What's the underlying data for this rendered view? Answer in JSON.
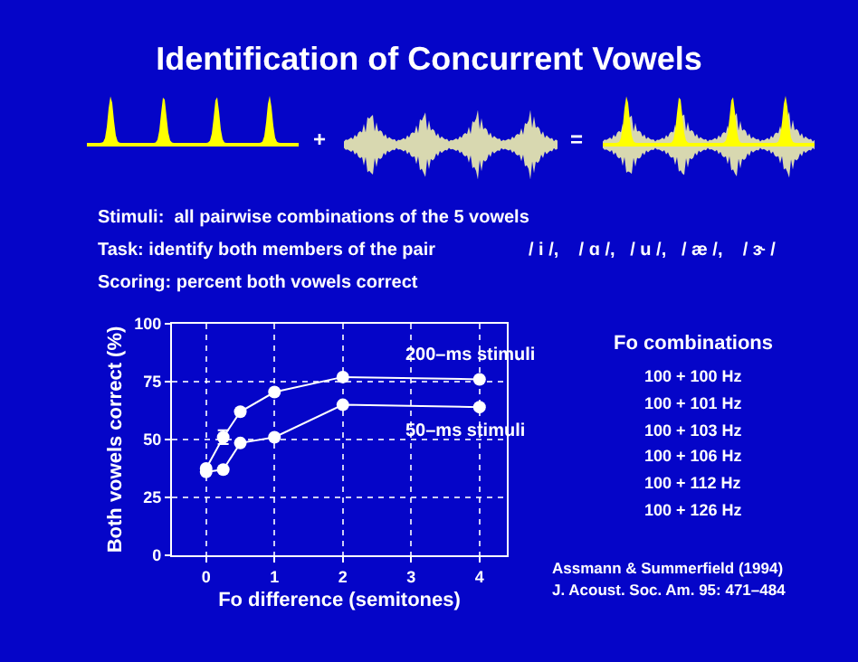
{
  "chart_data": {
    "type": "line",
    "title": "Identification of Concurrent Vowels",
    "xlabel": "Fo difference (semitones)",
    "ylabel": "Both vowels correct (%)",
    "series": [
      {
        "name": "200–ms stimuli",
        "color": "#ffffff",
        "x": [
          0,
          0.25,
          0.5,
          1,
          2,
          4
        ],
        "values": [
          37.5,
          51,
          62,
          70.5,
          77,
          76
        ],
        "errors": [
          null,
          3,
          null,
          null,
          null,
          null
        ]
      },
      {
        "name": "50–ms stimuli",
        "color": "#ffffff",
        "x": [
          0,
          0.25,
          0.5,
          1,
          2,
          4
        ],
        "values": [
          36,
          37,
          48.5,
          51,
          65,
          64
        ]
      }
    ],
    "xlim": [
      -0.5,
      4.4
    ],
    "xticks": [
      0,
      1,
      2,
      3,
      4
    ],
    "ylim": [
      0,
      100
    ],
    "yticks": [
      0,
      25,
      50,
      75,
      100
    ],
    "grid": true,
    "marker": "circle",
    "line_style": "solid",
    "legend": false,
    "annotations": [
      "+",
      "=",
      "Stimuli:  all pairwise combinations of the 5 vowels",
      "Task: identify both members of the pair",
      "/ i /,    / ɑ /,   / u /,   / æ /,    / ɝ /",
      "Scoring: percent both vowels correct",
      "Fo combinations",
      "100 + 100 Hz",
      "100 + 101 Hz",
      "100 + 103 Hz",
      "100 + 106 Hz",
      "100 + 112 Hz",
      "100 + 126 Hz",
      "Assmann & Summerfield (1994)",
      "J. Acoust. Soc. Am. 95: 471–484"
    ]
  }
}
